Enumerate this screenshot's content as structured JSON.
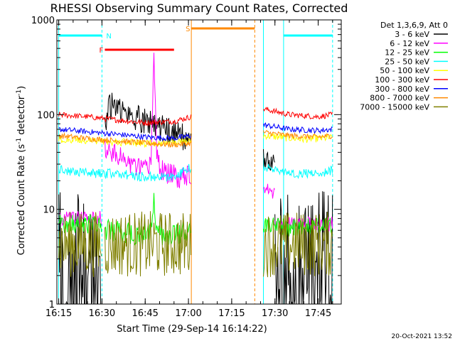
{
  "chart_data": {
    "type": "line",
    "title": "RHESSI Observing Summary Count Rates, Corrected",
    "xlabel": "Start Time (29-Sep-14 16:14:22)",
    "ylabel": "Corrected Count Rate (s-1 detector-1)",
    "ylabel_main": "Corrected Count Rate (s",
    "ylabel_sup1": "-1",
    "ylabel_mid": " detector",
    "ylabel_sup2": "-1",
    "ylabel_end": ")",
    "y_scale": "log",
    "xlim": [
      "16:14:22",
      "17:53:00"
    ],
    "ylim": [
      1,
      1000
    ],
    "x_ticks": [
      "16:15",
      "16:30",
      "16:45",
      "17:00",
      "17:15",
      "17:30",
      "17:45"
    ],
    "y_ticks": [
      "1",
      "10",
      "100",
      "1000"
    ],
    "legend_header": "Det 1,3,6,9, Att 0",
    "legend_placement": "right",
    "timestamp": "20-Oct-2021 13:52",
    "gap": [
      "17:01",
      "17:26"
    ],
    "series": [
      {
        "name": "3 - 6 keV",
        "color": "#000000",
        "segments": [
          {
            "x": [
              "16:15",
              "16:20",
              "16:25",
              "16:30"
            ],
            "y": [
              1.6,
              1.6,
              1.6,
              1.6
            ],
            "noise": 1.0
          },
          {
            "x": [
              "16:31",
              "16:33",
              "16:36",
              "16:40",
              "16:44",
              "16:48",
              "16:52",
              "16:56",
              "17:01"
            ],
            "y": [
              85,
              125,
              115,
              95,
              90,
              80,
              70,
              60,
              55
            ],
            "noise": 0.15
          },
          {
            "x": [
              "17:26",
              "17:28",
              "17:30"
            ],
            "y": [
              35,
              32,
              30
            ],
            "noise": 0.1
          },
          {
            "x": [
              "17:30",
              "17:40",
              "17:50"
            ],
            "y": [
              1.6,
              1.6,
              1.6
            ],
            "noise": 1.0
          }
        ]
      },
      {
        "name": "6 - 12 keV",
        "color": "#ff00ff",
        "segments": [
          {
            "x": [
              "16:15",
              "16:30"
            ],
            "y": [
              8,
              8
            ],
            "noise": 0.08
          },
          {
            "x": [
              "16:31",
              "16:33",
              "16:36",
              "16:40",
              "16:44",
              "16:47",
              "16:48",
              "16:49",
              "16:50",
              "16:52",
              "16:56",
              "17:01"
            ],
            "y": [
              45,
              42,
              35,
              30,
              25,
              30,
              440,
              40,
              28,
              24,
              22,
              24
            ],
            "noise": 0.12
          },
          {
            "x": [
              "17:26",
              "17:28",
              "17:30"
            ],
            "y": [
              18,
              16,
              15
            ],
            "noise": 0.08
          },
          {
            "x": [
              "17:30",
              "17:50"
            ],
            "y": [
              7,
              7
            ],
            "noise": 0.08
          }
        ]
      },
      {
        "name": "12 - 25 keV",
        "color": "#00ff00",
        "segments": [
          {
            "x": [
              "16:15",
              "16:30"
            ],
            "y": [
              7,
              7
            ],
            "noise": 0.1
          },
          {
            "x": [
              "16:31",
              "16:40",
              "16:47",
              "16:48",
              "16:49",
              "16:52",
              "16:56",
              "17:01"
            ],
            "y": [
              6,
              5.5,
              5.5,
              15,
              6,
              5,
              5.5,
              6.5
            ],
            "noise": 0.12
          },
          {
            "x": [
              "17:26",
              "17:40",
              "17:50"
            ],
            "y": [
              6.5,
              6.5,
              6.5
            ],
            "noise": 0.1
          }
        ]
      },
      {
        "name": "25 - 50 keV",
        "color": "#00ffff",
        "segments": [
          {
            "x": [
              "16:15",
              "16:25",
              "16:35",
              "16:45",
              "16:55",
              "17:01"
            ],
            "y": [
              26,
              24,
              24,
              22,
              22,
              28
            ],
            "noise": 0.05
          },
          {
            "x": [
              "17:26",
              "17:35",
              "17:45",
              "17:50"
            ],
            "y": [
              28,
              24,
              24,
              26
            ],
            "noise": 0.05
          }
        ]
      },
      {
        "name": "50 - 100 keV",
        "color": "#ffff00",
        "segments": [
          {
            "x": [
              "16:15",
              "16:30",
              "16:45",
              "17:01"
            ],
            "y": [
              55,
              52,
              50,
              52
            ],
            "noise": 0.04
          },
          {
            "x": [
              "17:26",
              "17:40",
              "17:50"
            ],
            "y": [
              60,
              55,
              57
            ],
            "noise": 0.04
          }
        ]
      },
      {
        "name": "100 - 300 keV",
        "color": "#ff0000",
        "segments": [
          {
            "x": [
              "16:15",
              "16:25",
              "16:35",
              "16:45",
              "16:55",
              "17:01"
            ],
            "y": [
              100,
              95,
              88,
              82,
              85,
              95
            ],
            "noise": 0.03
          },
          {
            "x": [
              "17:26",
              "17:35",
              "17:45",
              "17:50"
            ],
            "y": [
              115,
              100,
              95,
              100
            ],
            "noise": 0.03
          }
        ]
      },
      {
        "name": "300 - 800 keV",
        "color": "#0000ff",
        "segments": [
          {
            "x": [
              "16:15",
              "16:25",
              "16:35",
              "16:45",
              "16:55",
              "17:01"
            ],
            "y": [
              70,
              66,
              62,
              58,
              56,
              60
            ],
            "noise": 0.03
          },
          {
            "x": [
              "17:26",
              "17:35",
              "17:45",
              "17:50"
            ],
            "y": [
              78,
              70,
              68,
              70
            ],
            "noise": 0.03
          }
        ]
      },
      {
        "name": "800 - 7000 keV",
        "color": "#ff8800",
        "segments": [
          {
            "x": [
              "16:15",
              "16:25",
              "16:35",
              "16:45",
              "16:55",
              "17:01"
            ],
            "y": [
              60,
              56,
              53,
              50,
              48,
              50
            ],
            "noise": 0.03
          },
          {
            "x": [
              "17:26",
              "17:35",
              "17:45",
              "17:50"
            ],
            "y": [
              65,
              60,
              58,
              60
            ],
            "noise": 0.03
          }
        ]
      },
      {
        "name": "7000 - 15000 keV",
        "color": "#808000",
        "segments": [
          {
            "x": [
              "16:15",
              "16:30"
            ],
            "y": [
              4.3,
              4.3
            ],
            "noise": 0.35
          },
          {
            "x": [
              "16:31",
              "16:45",
              "17:01"
            ],
            "y": [
              4.3,
              4.3,
              4.3
            ],
            "noise": 0.35
          },
          {
            "x": [
              "17:26",
              "17:40",
              "17:50"
            ],
            "y": [
              4.3,
              4.3,
              4.3
            ],
            "noise": 0.35
          }
        ]
      }
    ],
    "flags": [
      {
        "label": "",
        "color": "#00ffff",
        "x0": "16:15",
        "x1": "16:30",
        "level": 1
      },
      {
        "label": "N",
        "color": "#00ffff",
        "x0": "16:30",
        "x1": "16:30",
        "level": 1
      },
      {
        "label": "F",
        "color": "#ff0000",
        "x0": "16:31",
        "x1": "16:55",
        "level": 3
      },
      {
        "label": "S",
        "color": "#ff8800",
        "x0": "17:01",
        "x1": "17:23",
        "level": 0
      },
      {
        "label": "",
        "color": "#00ffff",
        "x0": "17:33",
        "x1": "17:50",
        "level": 1
      }
    ],
    "vlines": [
      {
        "x": "16:15",
        "color": "#00ffff",
        "dashed": false
      },
      {
        "x": "16:30",
        "color": "#00ffff",
        "dashed": true
      },
      {
        "x": "17:01",
        "color": "#ff8800",
        "dashed": false
      },
      {
        "x": "17:23",
        "color": "#ff8800",
        "dashed": true
      },
      {
        "x": "17:26",
        "color": "#00ffff",
        "dashed": false
      },
      {
        "x": "17:33",
        "color": "#00ffff",
        "dashed": false
      },
      {
        "x": "17:50",
        "color": "#00ffff",
        "dashed": true
      }
    ]
  }
}
